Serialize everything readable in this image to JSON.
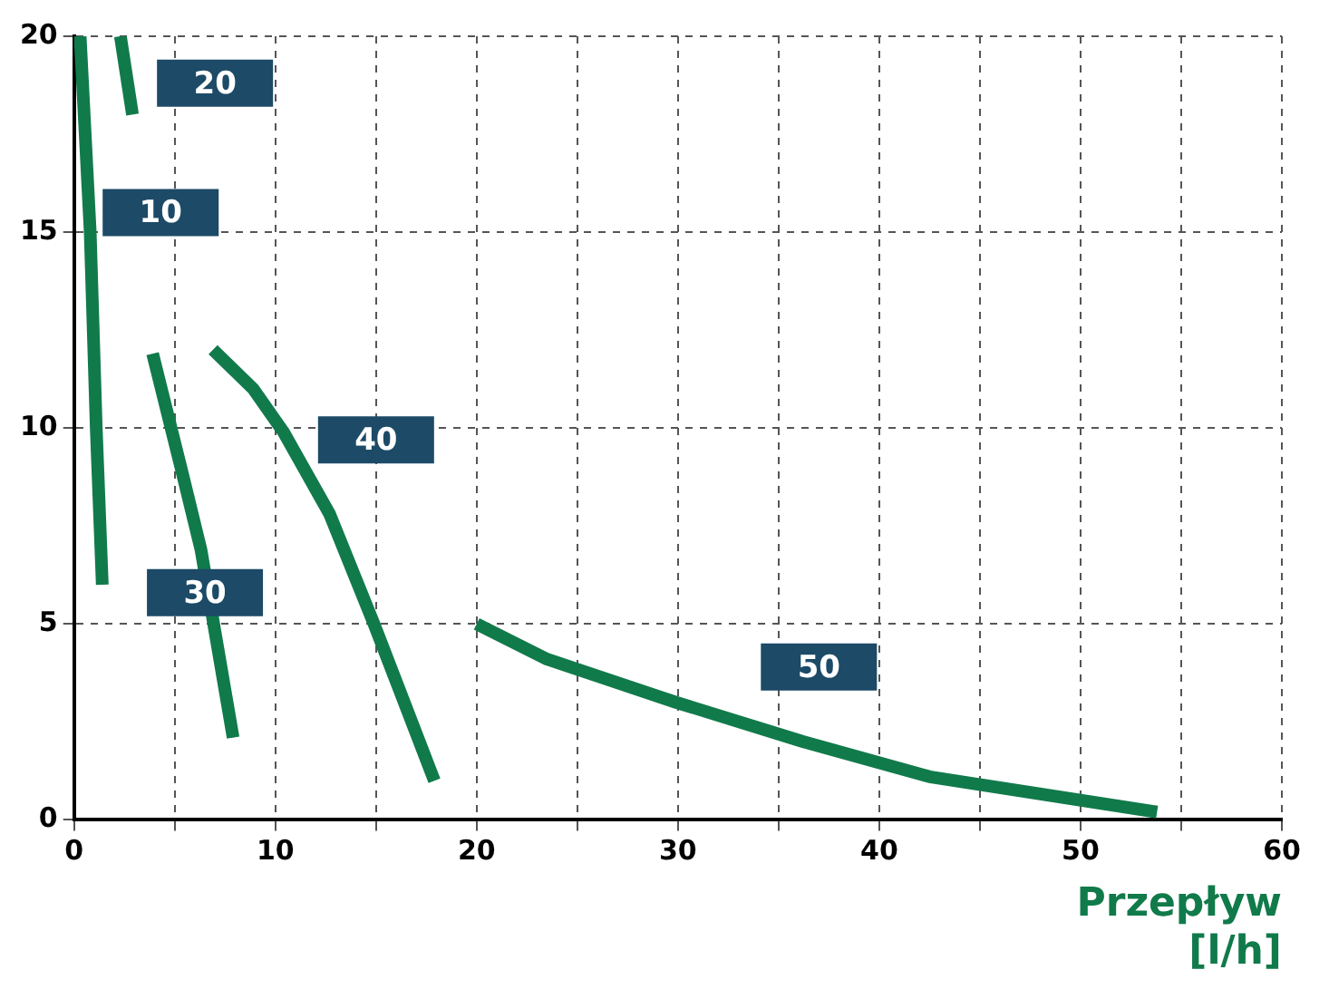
{
  "chart_data": {
    "type": "line",
    "xlabel": "Przepływ\n[l/h]",
    "xlim": [
      0,
      60
    ],
    "ylim": [
      0,
      20
    ],
    "xticks": [
      0,
      {
        "value": 5,
        "label": null
      },
      10,
      {
        "value": 15,
        "label": null
      },
      20,
      {
        "value": 25,
        "label": null
      },
      30,
      {
        "value": 35,
        "label": null
      },
      40,
      {
        "value": 45,
        "label": null
      },
      50,
      {
        "value": 55,
        "label": null
      },
      60
    ],
    "yticks": [
      0,
      5,
      10,
      15,
      20
    ],
    "grid": true,
    "legend": false,
    "marker": "none",
    "line_style": "solid",
    "series": [
      {
        "name": "10",
        "color": "#117a4b",
        "x": [
          0.3,
          0.8,
          1.1,
          1.4
        ],
        "values": [
          20,
          15,
          10,
          6
        ]
      },
      {
        "name": "20",
        "color": "#117a4b",
        "x": [
          2.3,
          2.9
        ],
        "values": [
          20,
          18
        ]
      },
      {
        "name": "30",
        "color": "#117a4b",
        "x": [
          3.9,
          5.4,
          6.3,
          7.9
        ],
        "values": [
          11.9,
          8.8,
          6.9,
          2.1
        ]
      },
      {
        "name": "40",
        "color": "#117a4b",
        "x": [
          6.9,
          8.9,
          10.4,
          12.7,
          14.9,
          17.9
        ],
        "values": [
          12,
          11,
          9.9,
          7.8,
          5,
          1
        ]
      },
      {
        "name": "50",
        "color": "#117a4b",
        "x": [
          20,
          23.5,
          29.9,
          36.2,
          42.5,
          53.8
        ],
        "values": [
          5,
          4.1,
          3,
          2,
          1.1,
          0.2
        ]
      }
    ]
  }
}
